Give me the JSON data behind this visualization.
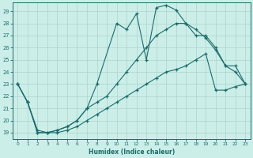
{
  "xlabel": "Humidex (Indice chaleur)",
  "bg_color": "#cceee8",
  "line_color": "#1a6b6b",
  "grid_color": "#aad4cc",
  "xlim": [
    -0.5,
    23.5
  ],
  "ylim": [
    18.5,
    29.7
  ],
  "xticks": [
    0,
    1,
    2,
    3,
    4,
    5,
    6,
    7,
    8,
    9,
    10,
    11,
    12,
    13,
    14,
    15,
    16,
    17,
    18,
    19,
    20,
    21,
    22,
    23
  ],
  "yticks": [
    19,
    20,
    21,
    22,
    23,
    24,
    25,
    26,
    27,
    28,
    29
  ],
  "line1_x": [
    0,
    1,
    2,
    3,
    4,
    5,
    6,
    7,
    8,
    10,
    11,
    12,
    13,
    14,
    15,
    16,
    17,
    18,
    19,
    20,
    21,
    22,
    23
  ],
  "line1_y": [
    23,
    21.5,
    19.2,
    19.0,
    19.2,
    19.5,
    20.0,
    21.0,
    23.0,
    28.0,
    27.5,
    28.8,
    25.0,
    29.3,
    29.5,
    29.1,
    28.0,
    27.5,
    26.8,
    25.8,
    24.5,
    24.0,
    23.0
  ],
  "line2_x": [
    0,
    1,
    2,
    3,
    4,
    5,
    6,
    7,
    8,
    9,
    10,
    11,
    12,
    13,
    14,
    15,
    16,
    17,
    18,
    19,
    20,
    21,
    22,
    23
  ],
  "line2_y": [
    23,
    21.5,
    19.0,
    19.0,
    19.2,
    19.5,
    20.0,
    21.0,
    21.5,
    22.0,
    23.0,
    24.0,
    25.0,
    26.0,
    27.0,
    27.5,
    28.0,
    28.0,
    27.0,
    27.0,
    26.0,
    24.5,
    24.5,
    23.0
  ],
  "line3_x": [
    0,
    1,
    2,
    3,
    4,
    5,
    6,
    7,
    8,
    9,
    10,
    11,
    12,
    13,
    14,
    15,
    16,
    17,
    18,
    19,
    20,
    21,
    22,
    23
  ],
  "line3_y": [
    23,
    21.5,
    19.0,
    19.0,
    19.0,
    19.2,
    19.5,
    20.0,
    20.5,
    21.0,
    21.5,
    22.0,
    22.5,
    23.0,
    23.5,
    24.0,
    24.2,
    24.5,
    25.0,
    25.5,
    22.5,
    22.5,
    22.8,
    23.0
  ]
}
